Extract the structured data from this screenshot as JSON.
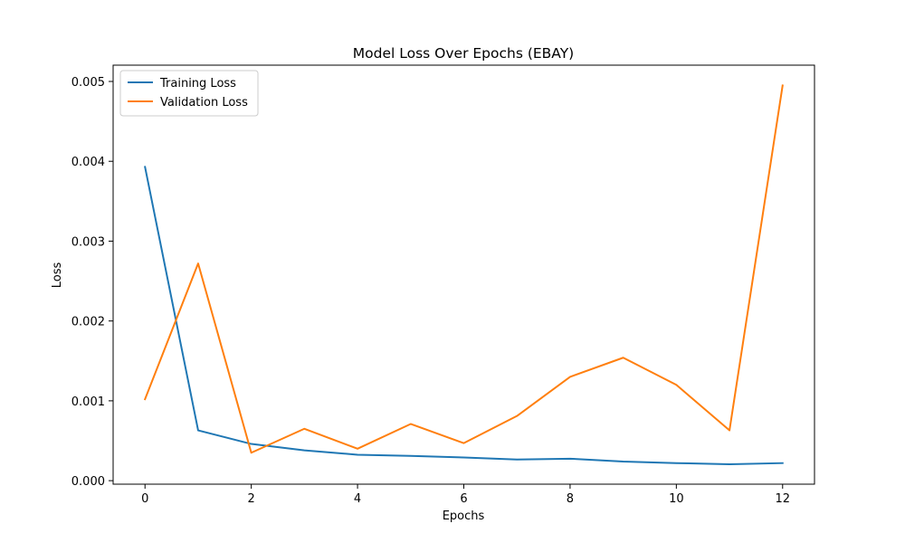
{
  "chart_data": {
    "type": "line",
    "title": "Model Loss Over Epochs (EBAY)",
    "xlabel": "Epochs",
    "ylabel": "Loss",
    "x": [
      0,
      1,
      2,
      3,
      4,
      5,
      6,
      7,
      8,
      9,
      10,
      11,
      12
    ],
    "xlim": [
      -0.6,
      12.6
    ],
    "ylim": [
      -4.4e-05,
      0.005204
    ],
    "xticks": [
      0,
      2,
      4,
      6,
      8,
      10,
      12
    ],
    "xtick_labels": [
      "0",
      "2",
      "4",
      "6",
      "8",
      "10",
      "12"
    ],
    "yticks": [
      0,
      0.001,
      0.002,
      0.003,
      0.004,
      0.005
    ],
    "ytick_labels": [
      "0.000",
      "0.001",
      "0.002",
      "0.003",
      "0.004",
      "0.005"
    ],
    "grid": false,
    "legend_position": "top-left",
    "series": [
      {
        "name": "Training Loss",
        "color": "#1f77b4",
        "values": [
          0.00393,
          0.00063,
          0.00046,
          0.00038,
          0.000325,
          0.00031,
          0.00029,
          0.000265,
          0.000275,
          0.00024,
          0.00022,
          0.000205,
          0.00022
        ]
      },
      {
        "name": "Validation Loss",
        "color": "#ff7f0e",
        "values": [
          0.00102,
          0.00272,
          0.00035,
          0.00065,
          0.0004,
          0.00071,
          0.00047,
          0.00081,
          0.0013,
          0.00154,
          0.0012,
          0.00063,
          0.00495
        ]
      }
    ]
  }
}
